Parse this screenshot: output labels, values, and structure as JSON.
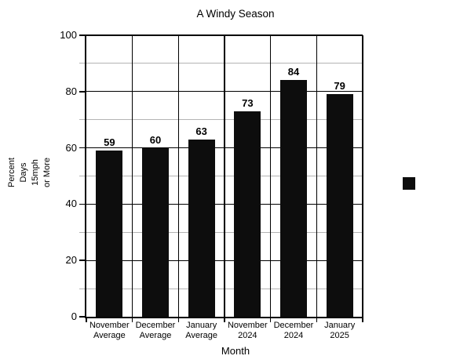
{
  "chart_data": {
    "type": "bar",
    "title": "A Windy Season",
    "categories": [
      [
        "November",
        "Average"
      ],
      [
        "December",
        "Average"
      ],
      [
        "January",
        "Average"
      ],
      [
        "November",
        "2024"
      ],
      [
        "December",
        "2024"
      ],
      [
        "January",
        "2025"
      ]
    ],
    "values": [
      59,
      60,
      63,
      73,
      84,
      79
    ],
    "value_labels": [
      "59",
      "60",
      "63",
      "73",
      "84",
      "79"
    ],
    "xlabel": "Month",
    "ylabel_lines": [
      "Percent",
      "Days",
      "15mph",
      "or More"
    ],
    "ylim": [
      0,
      100
    ],
    "ytick_labels": [
      "0",
      "20",
      "40",
      "60",
      "80",
      "100"
    ],
    "ytick_step": 20,
    "yminor_step": 10,
    "grid": "major-and-minor-on",
    "legend_position": "right-middle",
    "legend_marker": "black-square",
    "colors": {
      "bar": "#0d0d0d",
      "grid_major": "#000000",
      "grid_minor": "#b3b3b3",
      "axis": "#000000",
      "text": "#000000",
      "background": "#ffffff"
    }
  }
}
